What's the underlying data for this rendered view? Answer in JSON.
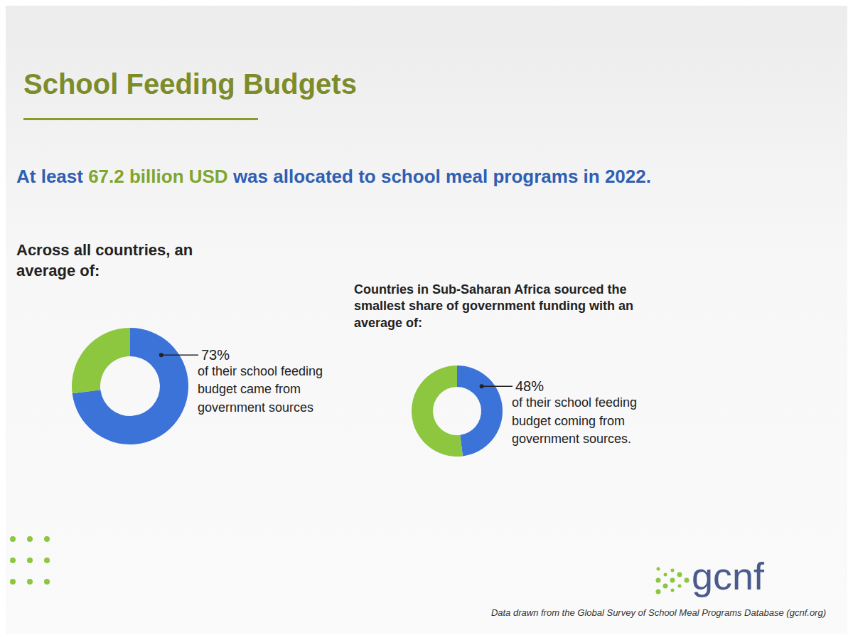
{
  "title": "School Feeding Budgets",
  "headline": [
    "At least ",
    "67.2 billion USD",
    " was allocated to school meal programs in 2022."
  ],
  "chart_data": [
    {
      "type": "pie",
      "title": "Across all countries, an average of:",
      "categories": [
        null,
        null
      ],
      "values": [
        73,
        27
      ],
      "value_labels": [
        "73%",
        null
      ],
      "colors": [
        "#3b73d9",
        "#8dc63f"
      ],
      "annotation": "of their school feeding budget came from government sources"
    },
    {
      "type": "pie",
      "title": "Countries in Sub-Saharan Africa sourced the smallest share of government funding with an average of:",
      "categories": [
        null,
        null
      ],
      "values": [
        48,
        52
      ],
      "value_labels": [
        "48%",
        null
      ],
      "colors": [
        "#3b73d9",
        "#8dc63f"
      ],
      "annotation": "of their school feeding budget coming from government sources."
    }
  ],
  "logo": "gcnf",
  "source": "Data drawn from the Global Survey of School Meal Programs Database (gcnf.org)"
}
